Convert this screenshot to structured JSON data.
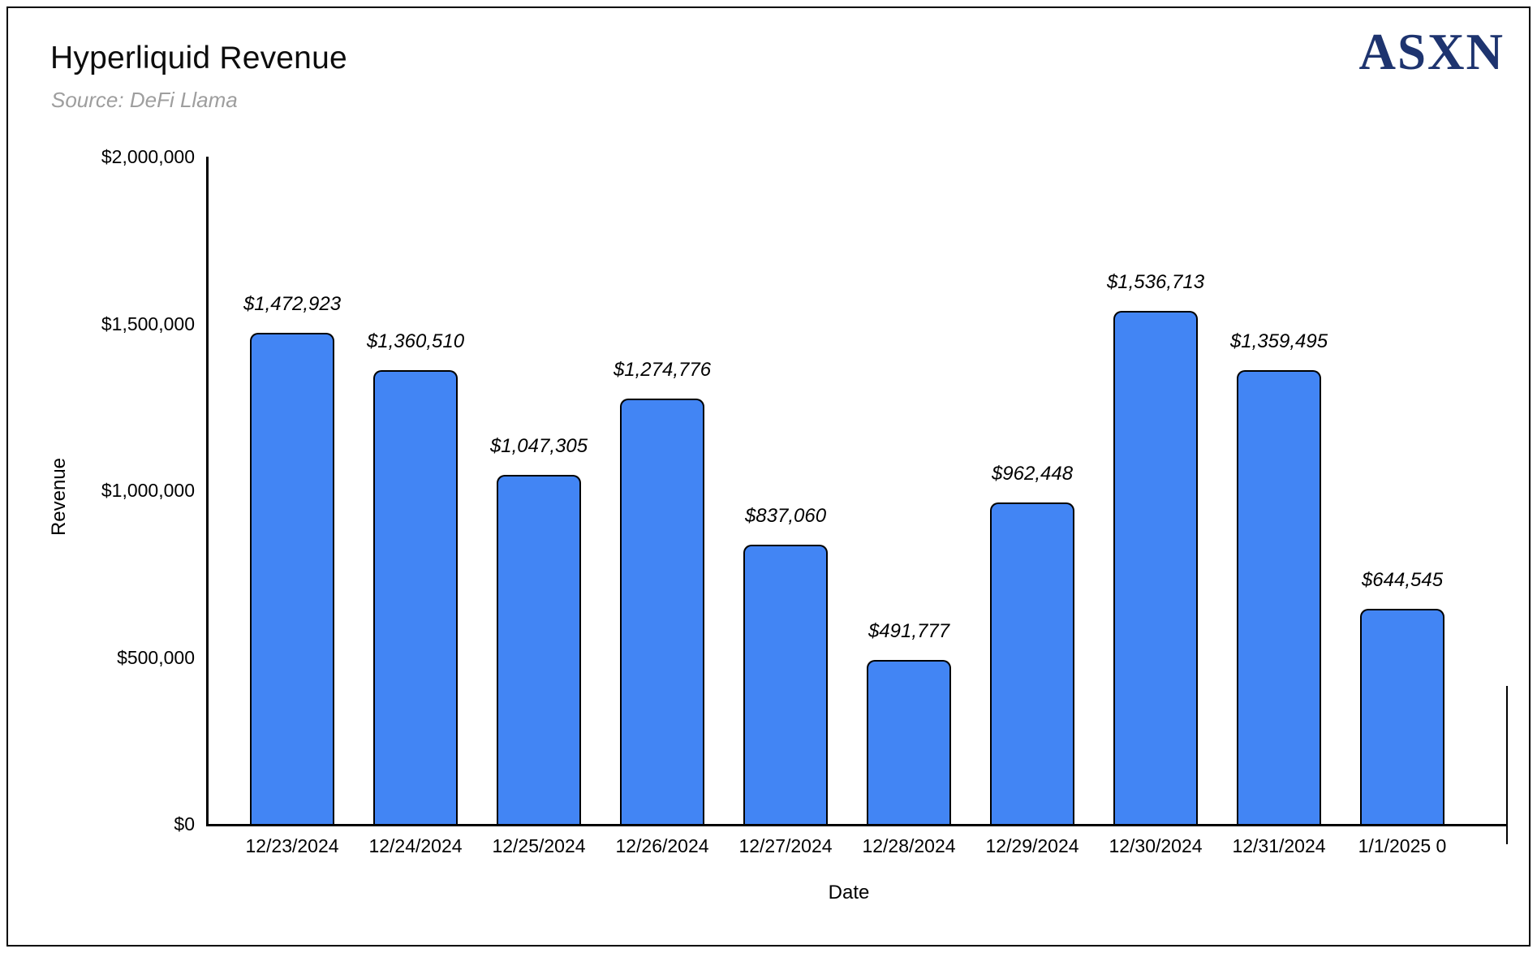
{
  "header": {
    "title": "Hyperliquid Revenue",
    "subtitle": "Source: DeFi Llama",
    "logo_text": "ASXN",
    "logo_color": "#1e346f"
  },
  "chart_data": {
    "type": "bar",
    "title": "Hyperliquid Revenue",
    "subtitle": "Source: DeFi Llama",
    "xlabel": "Date",
    "ylabel": "Revenue",
    "categories": [
      "12/23/2024",
      "12/24/2024",
      "12/25/2024",
      "12/26/2024",
      "12/27/2024",
      "12/28/2024",
      "12/29/2024",
      "12/30/2024",
      "12/31/2024",
      "1/1/2025 0"
    ],
    "values": [
      1472923,
      1360510,
      1047305,
      1274776,
      837060,
      491777,
      962448,
      1536713,
      1359495,
      644545
    ],
    "value_labels": [
      "$1,472,923",
      "$1,360,510",
      "$1,047,305",
      "$1,274,776",
      "$837,060",
      "$491,777",
      "$962,448",
      "$1,536,713",
      "$1,359,495",
      "$644,545"
    ],
    "ylim": [
      0,
      2000000
    ],
    "y_ticks": [
      {
        "value": 2000000,
        "label": "$2,000,000"
      },
      {
        "value": 1500000,
        "label": "$1,500,000"
      },
      {
        "value": 1000000,
        "label": "$1,000,000"
      },
      {
        "value": 500000,
        "label": "$500,000"
      },
      {
        "value": 0,
        "label": "$0"
      }
    ],
    "bar_color": "#4285F4",
    "bar_border_color": "#000000",
    "grid": false,
    "legend": "none"
  }
}
